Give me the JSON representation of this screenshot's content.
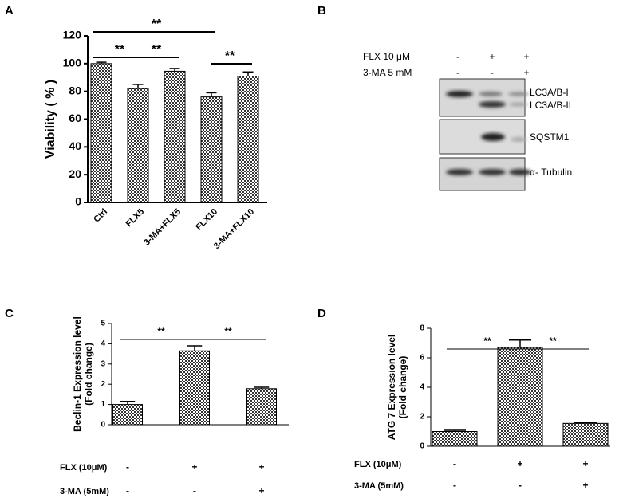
{
  "panel_labels": [
    "A",
    "B",
    "C",
    "D"
  ],
  "blot": {
    "treatments": [
      {
        "label": "FLX 10 μM",
        "signs": [
          "-",
          "+",
          "+"
        ]
      },
      {
        "label": "3-MA 5 mM",
        "signs": [
          "-",
          "-",
          "+"
        ]
      }
    ],
    "bands": [
      "LC3A/B-I",
      "LC3A/B-II",
      "SQSTM1",
      "α- Tubulin"
    ]
  },
  "chart_data": [
    {
      "type": "bar",
      "ylabel": [
        "Viability ( % )"
      ],
      "categories": [
        "Ctrl",
        "FLX5",
        "3-MA+FLX5",
        "FLX10",
        "3-MA+FLX10"
      ],
      "values": [
        100,
        82,
        94.5,
        76,
        91
      ],
      "errors": [
        1,
        3,
        2,
        3,
        3
      ],
      "ylim": [
        0,
        120
      ],
      "yticks": [
        0,
        20,
        40,
        60,
        80,
        100,
        120
      ],
      "annotations": [
        "**",
        "**",
        "**",
        "**"
      ]
    },
    {
      "type": "bar",
      "ylabel": [
        "Beclin-1 Expression level",
        "(Fold change)"
      ],
      "categories": [
        null,
        null,
        null
      ],
      "values": [
        1.0,
        3.65,
        1.78
      ],
      "errors": [
        0.15,
        0.25,
        0.07
      ],
      "ylim": [
        0,
        5
      ],
      "yticks": [
        0,
        1,
        2,
        3,
        4,
        5
      ],
      "annotations": [
        "**",
        "**"
      ],
      "conditions": [
        {
          "label": "FLX (10μM)",
          "signs": [
            "-",
            "+",
            "+"
          ]
        },
        {
          "label": "3-MA (5mM)",
          "signs": [
            "-",
            "-",
            "+"
          ]
        }
      ]
    },
    {
      "type": "bar",
      "ylabel": [
        "ATG 7 Expression level",
        "(Fold change)"
      ],
      "categories": [
        null,
        null,
        null
      ],
      "values": [
        1.0,
        6.7,
        1.55
      ],
      "errors": [
        0.08,
        0.5,
        0.05
      ],
      "ylim": [
        0,
        8
      ],
      "yticks": [
        0,
        2,
        4,
        6,
        8
      ],
      "annotations": [
        "**",
        "**"
      ],
      "conditions": [
        {
          "label": "FLX (10μM)",
          "signs": [
            "-",
            "+",
            "+"
          ]
        },
        {
          "label": "3-MA (5mM)",
          "signs": [
            "-",
            "-",
            "+"
          ]
        }
      ]
    }
  ]
}
